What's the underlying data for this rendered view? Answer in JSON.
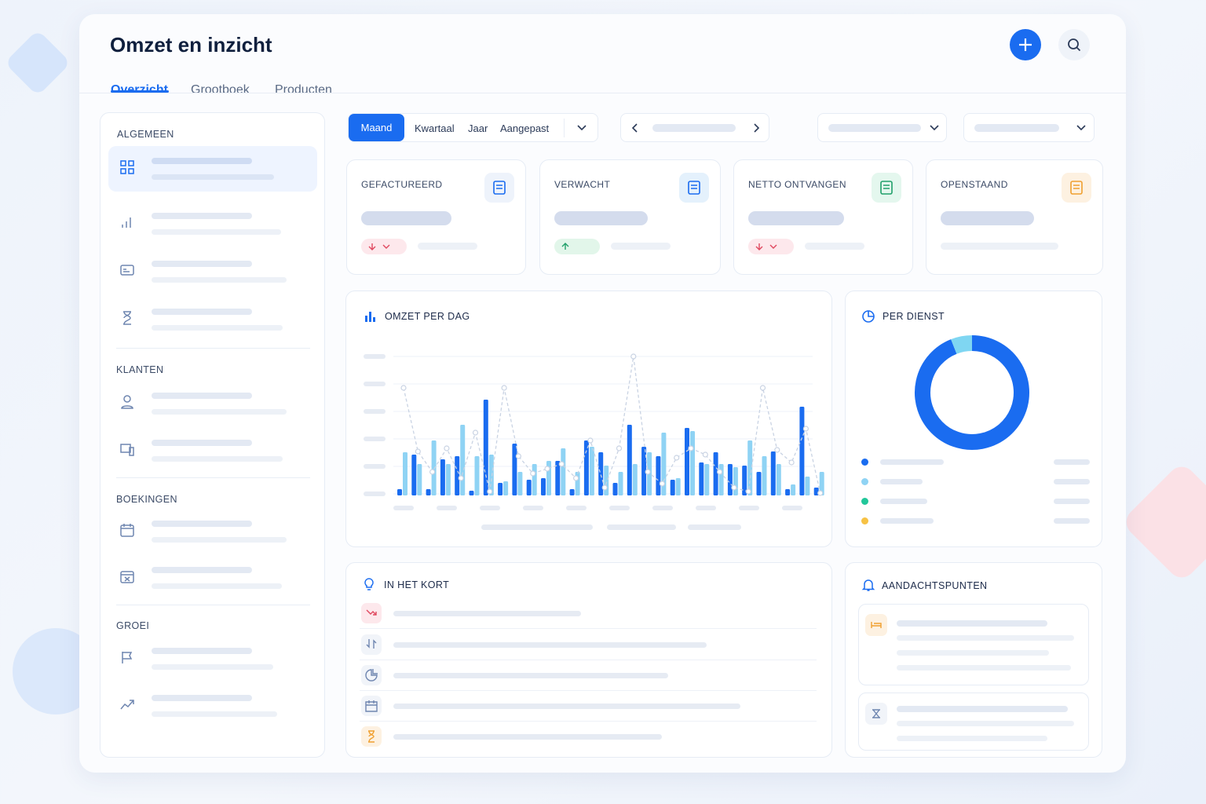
{
  "header": {
    "title": "Omzet en inzicht",
    "tabs": [
      "Overzicht",
      "Grootboek",
      "Producten"
    ]
  },
  "sidebar": {
    "sections": [
      "ALGEMEEN",
      "KLANTEN",
      "BOEKINGEN",
      "GROEI"
    ]
  },
  "filters": {
    "periods": [
      "Maand",
      "Kwartaal",
      "Jaar",
      "Aangepast"
    ]
  },
  "kpis": [
    "GEFACTUREERD",
    "VERWACHT",
    "NETTO ONTVANGEN",
    "OPENSTAAND"
  ],
  "omzet_per_dag": {
    "title": "OMZET PER DAG",
    "chart": {
      "type": "bar",
      "series": [
        {
          "color": "#1a6cf0",
          "values": [
            8,
            52,
            8,
            46,
            50,
            6,
            122,
            16,
            66,
            20,
            22,
            44,
            8,
            70,
            55,
            16,
            90,
            62,
            50,
            20,
            86,
            42,
            55,
            40,
            38,
            30,
            56,
            8,
            113,
            10
          ]
        },
        {
          "color": "#8fd3f4",
          "values": [
            55,
            40,
            70,
            40,
            90,
            50,
            52,
            18,
            30,
            40,
            44,
            60,
            30,
            62,
            38,
            30,
            40,
            55,
            80,
            22,
            82,
            40,
            40,
            36,
            70,
            50,
            40,
            14,
            24,
            30
          ]
        },
        {
          "color": "#c9d3e3",
          "type": "line",
          "values": [
            137,
            56,
            30,
            60,
            22,
            80,
            5,
            137,
            50,
            28,
            34,
            40,
            22,
            70,
            10,
            60,
            177,
            30,
            15,
            48,
            60,
            52,
            30,
            10,
            5,
            137,
            58,
            42,
            85,
            3
          ]
        }
      ]
    }
  },
  "per_dienst": {
    "title": "PER DIENST",
    "chart": {
      "type": "pie",
      "series": [
        {
          "color": "#1a6cf0",
          "value": 94
        },
        {
          "color": "#7fd6f2",
          "value": 6
        }
      ]
    }
  },
  "in_het_kort": {
    "title": "IN HET KORT"
  },
  "aandachtspunten": {
    "title": "AANDACHTSPUNTEN"
  }
}
